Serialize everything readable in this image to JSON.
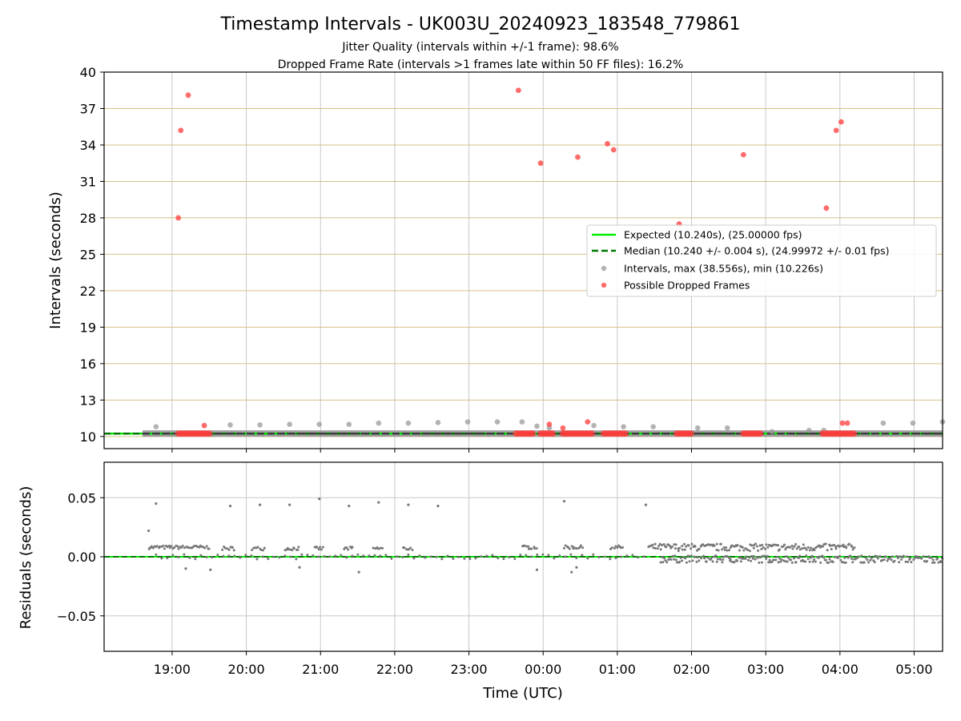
{
  "chart_data": [
    {
      "type": "scatter",
      "title": "Timestamp Intervals - UK003U_20240923_183548_779861",
      "subtitle_lines": [
        "Jitter Quality (intervals within +/-1 frame): 98.6%",
        "Dropped Frame Rate (intervals >1 frames late within 50 FF files): 16.2%"
      ],
      "xlabel": "",
      "ylabel": "Intervals (seconds)",
      "xlim": [
        "18:05",
        "05:23"
      ],
      "ylim": [
        9,
        40
      ],
      "yticks": [
        10,
        13,
        16,
        19,
        22,
        25,
        28,
        31,
        34,
        37,
        40
      ],
      "grid": true,
      "legend_position": "center-right",
      "series": [
        {
          "name": "Expected (10.240s), (25.00000 fps)",
          "kind": "hline",
          "value": 10.24,
          "color": "#00ee00"
        },
        {
          "name": "Median (10.240 +/- 0.004 s), (24.99972 +/- 0.01 fps)",
          "kind": "hline-dashed",
          "value": 10.24,
          "color": "#007700"
        },
        {
          "name": "Intervals, max (38.556s), min (10.226s)",
          "kind": "scatter",
          "color": "#999999",
          "x": [
            "18:47",
            "19:47",
            "20:11",
            "20:35",
            "20:59",
            "21:23",
            "21:47",
            "22:11",
            "22:35",
            "22:59",
            "23:23",
            "23:43",
            "23:55",
            "00:05",
            "00:41",
            "01:05",
            "01:29",
            "02:05",
            "02:29",
            "03:05",
            "03:35",
            "03:47",
            "04:35",
            "04:59",
            "05:23"
          ],
          "y": [
            10.8,
            10.95,
            10.95,
            11.0,
            11.0,
            11.0,
            11.1,
            11.1,
            11.15,
            11.2,
            11.2,
            11.2,
            10.85,
            10.7,
            10.9,
            10.8,
            10.8,
            10.7,
            10.7,
            10.4,
            10.5,
            10.5,
            11.1,
            11.1,
            11.2
          ]
        },
        {
          "name": "Possible Dropped Frames",
          "kind": "scatter",
          "color": "#ff3b3b",
          "x": [
            "19:05",
            "19:07",
            "19:13",
            "19:26",
            "23:40",
            "23:58",
            "00:05",
            "00:16",
            "00:28",
            "00:36",
            "00:52",
            "00:57",
            "01:50",
            "02:42",
            "03:49",
            "03:57",
            "04:01",
            "04:02",
            "04:06"
          ],
          "y": [
            28.0,
            35.2,
            38.1,
            10.9,
            38.5,
            32.5,
            11.0,
            10.7,
            33.0,
            11.2,
            34.1,
            33.6,
            27.5,
            33.2,
            28.8,
            35.2,
            35.9,
            11.1,
            11.1
          ],
          "bands": [
            [
              "19:05",
              "19:32"
            ],
            [
              "23:38",
              "23:52"
            ],
            [
              "23:58",
              "00:09"
            ],
            [
              "00:16",
              "00:40"
            ],
            [
              "00:49",
              "01:08"
            ],
            [
              "01:48",
              "02:00"
            ],
            [
              "02:42",
              "02:56"
            ],
            [
              "03:46",
              "04:12"
            ]
          ]
        }
      ]
    },
    {
      "type": "scatter",
      "xlabel": "Time (UTC)",
      "ylabel": "Residuals (seconds)",
      "xlim": [
        "18:05",
        "05:23"
      ],
      "ylim": [
        -0.08,
        0.08
      ],
      "yticks": [
        0.05,
        0.0,
        -0.05
      ],
      "ytick_labels": [
        "0.05",
        "0.00",
        "−0.05"
      ],
      "xticks": [
        "19:00",
        "20:00",
        "21:00",
        "22:00",
        "23:00",
        "00:00",
        "01:00",
        "02:00",
        "03:00",
        "04:00",
        "05:00"
      ],
      "grid": true,
      "series": [
        {
          "kind": "hline-dashed",
          "value": 0.0,
          "color": "#007700"
        },
        {
          "kind": "scatter",
          "color": "#777777",
          "x": [
            "18:47",
            "19:11",
            "19:47",
            "20:11",
            "20:35",
            "20:59",
            "21:23",
            "21:47",
            "22:11",
            "22:35",
            "00:17",
            "01:23",
            "18:41",
            "18:43",
            "19:31",
            "20:43",
            "21:31",
            "23:55",
            "00:23",
            "00:27"
          ],
          "y": [
            0.045,
            -0.01,
            0.043,
            0.044,
            0.044,
            0.049,
            0.043,
            0.046,
            0.044,
            0.043,
            0.047,
            0.044,
            0.022,
            0.008,
            -0.011,
            -0.009,
            -0.013,
            -0.011,
            -0.013,
            -0.009
          ],
          "bands": [
            {
              "x": [
                "18:41",
                "19:31"
              ],
              "y": 0.008
            },
            {
              "x": [
                "19:41",
                "19:51"
              ],
              "y": 0.007
            },
            {
              "x": [
                "20:05",
                "20:15"
              ],
              "y": 0.007
            },
            {
              "x": [
                "20:31",
                "20:43"
              ],
              "y": 0.007
            },
            {
              "x": [
                "20:55",
                "21:03"
              ],
              "y": 0.007
            },
            {
              "x": [
                "21:19",
                "21:27"
              ],
              "y": 0.007
            },
            {
              "x": [
                "21:43",
                "21:51"
              ],
              "y": 0.007
            },
            {
              "x": [
                "22:07",
                "22:15"
              ],
              "y": 0.007
            },
            {
              "x": [
                "23:43",
                "23:55"
              ],
              "y": 0.008
            },
            {
              "x": [
                "00:17",
                "00:33"
              ],
              "y": 0.008
            },
            {
              "x": [
                "00:55",
                "01:05"
              ],
              "y": 0.008
            },
            {
              "x": [
                "01:25",
                "04:12"
              ],
              "y": 0.008
            },
            {
              "x": [
                "01:35",
                "05:23"
              ],
              "y": -0.002
            }
          ]
        }
      ]
    }
  ]
}
